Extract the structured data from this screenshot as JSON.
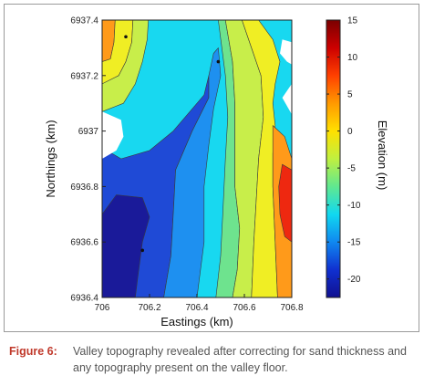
{
  "chart_data": {
    "type": "heatmap",
    "subtype": "filled-contour",
    "title": "",
    "xlabel": "Eastings (km)",
    "ylabel": "Northings (km)",
    "xlim": [
      706.0,
      706.8
    ],
    "ylim": [
      6936.4,
      6937.4
    ],
    "x_ticks": [
      "706",
      "706.2",
      "706.4",
      "706.6",
      "706.8"
    ],
    "y_ticks": [
      "6936.4",
      "6936.6",
      "6936.8",
      "6937",
      "6937.2",
      "6937.4"
    ],
    "colorbar": {
      "label": "Elevation (m)",
      "range": [
        -22.5,
        15
      ],
      "ticks": [
        "15",
        "10",
        "5",
        "0",
        "-5",
        "-10",
        "-15",
        "-20"
      ],
      "levels": [
        {
          "from": -25,
          "to": -20,
          "color": "#1a1a99"
        },
        {
          "from": -20,
          "to": -15,
          "color": "#1f4ad6"
        },
        {
          "from": -15,
          "to": -10,
          "color": "#1e90f0"
        },
        {
          "from": -10,
          "to": -5,
          "color": "#18d8f0"
        },
        {
          "from": -5,
          "to": 0,
          "color": "#6ee38e"
        },
        {
          "from": 0,
          "to": 5,
          "color": "#c8ee4a"
        },
        {
          "from": 5,
          "to": 10,
          "color": "#f0ee24"
        },
        {
          "from": 10,
          "to": 15,
          "color": "#ff9a1a"
        },
        {
          "from": 15,
          "to": 20,
          "color": "#ee2810"
        },
        {
          "from": 20,
          "to": 25,
          "color": "#b80000"
        }
      ],
      "gradient": [
        "#7a0000",
        "#cc0000",
        "#ff4000",
        "#ff9a00",
        "#ffe000",
        "#c0f040",
        "#60e890",
        "#10d8f0",
        "#1088f0",
        "#1030d0",
        "#101090"
      ]
    },
    "contour_regions": [
      {
        "level": "10 to 15",
        "color": "#ff9a1a",
        "points": [
          [
            706.0,
            6937.4
          ],
          [
            706.055,
            6937.4
          ],
          [
            706.05,
            6937.32
          ],
          [
            706.035,
            6937.26
          ],
          [
            706.0,
            6937.25
          ]
        ]
      },
      {
        "level": "5 to 10",
        "color": "#f0ee24",
        "points": [
          [
            706.055,
            6937.4
          ],
          [
            706.13,
            6937.4
          ],
          [
            706.125,
            6937.32
          ],
          [
            706.1,
            6937.25
          ],
          [
            706.07,
            6937.2
          ],
          [
            706.0,
            6937.17
          ],
          [
            706.0,
            6937.25
          ],
          [
            706.035,
            6937.26
          ],
          [
            706.05,
            6937.32
          ]
        ]
      },
      {
        "level": "0 to 5",
        "color": "#c8ee4a",
        "points": [
          [
            706.13,
            6937.4
          ],
          [
            706.195,
            6937.4
          ],
          [
            706.19,
            6937.33
          ],
          [
            706.17,
            6937.25
          ],
          [
            706.14,
            6937.17
          ],
          [
            706.09,
            6937.1
          ],
          [
            706.0,
            6937.07
          ],
          [
            706.0,
            6937.17
          ],
          [
            706.07,
            6937.2
          ],
          [
            706.1,
            6937.25
          ],
          [
            706.125,
            6937.32
          ]
        ]
      },
      {
        "level": "-20 to -15",
        "color": "#1f4ad6",
        "points": [
          [
            706.0,
            6936.94
          ],
          [
            706.08,
            6936.9
          ],
          [
            706.2,
            6936.93
          ],
          [
            706.3,
            6937.0
          ],
          [
            706.37,
            6937.07
          ],
          [
            706.43,
            6937.13
          ],
          [
            706.45,
            6937.2
          ],
          [
            706.45,
            6937.12
          ],
          [
            706.38,
            6937.0
          ],
          [
            706.31,
            6936.86
          ],
          [
            706.3,
            6936.7
          ],
          [
            706.29,
            6936.55
          ],
          [
            706.26,
            6936.4
          ],
          [
            706.0,
            6936.4
          ]
        ]
      },
      {
        "level": "-25 to -20",
        "color": "#1a1a99",
        "points": [
          [
            706.0,
            6936.4
          ],
          [
            706.0,
            6936.7
          ],
          [
            706.06,
            6936.77
          ],
          [
            706.17,
            6936.76
          ],
          [
            706.2,
            6936.69
          ],
          [
            706.17,
            6936.6
          ],
          [
            706.15,
            6936.47
          ],
          [
            706.14,
            6936.4
          ]
        ]
      },
      {
        "level": "-15 to -10",
        "color": "#1e90f0",
        "points": [
          [
            706.45,
            6937.2
          ],
          [
            706.47,
            6937.28
          ],
          [
            706.49,
            6937.3
          ],
          [
            706.5,
            6937.2
          ],
          [
            706.47,
            6937.08
          ],
          [
            706.45,
            6936.95
          ],
          [
            706.43,
            6936.8
          ],
          [
            706.43,
            6936.6
          ],
          [
            706.4,
            6936.4
          ],
          [
            706.26,
            6936.4
          ],
          [
            706.29,
            6936.55
          ],
          [
            706.3,
            6936.7
          ],
          [
            706.31,
            6936.86
          ],
          [
            706.38,
            6937.0
          ],
          [
            706.45,
            6937.12
          ]
        ]
      },
      {
        "level": "-5 to 0",
        "color": "#6ee38e",
        "points": [
          [
            706.52,
            6937.4
          ],
          [
            706.55,
            6937.25
          ],
          [
            706.56,
            6937.1
          ],
          [
            706.56,
            6936.95
          ],
          [
            706.56,
            6936.8
          ],
          [
            706.58,
            6936.65
          ],
          [
            706.57,
            6936.5
          ],
          [
            706.55,
            6936.4
          ],
          [
            706.48,
            6936.4
          ],
          [
            706.5,
            6936.55
          ],
          [
            706.51,
            6936.72
          ],
          [
            706.52,
            6936.9
          ],
          [
            706.53,
            6937.05
          ],
          [
            706.52,
            6937.2
          ],
          [
            706.49,
            6937.4
          ]
        ]
      },
      {
        "level": "0 to 5",
        "color": "#c8ee4a",
        "points": [
          [
            706.59,
            6937.4
          ],
          [
            706.63,
            6937.3
          ],
          [
            706.67,
            6937.2
          ],
          [
            706.68,
            6937.05
          ],
          [
            706.66,
            6936.9
          ],
          [
            706.65,
            6936.75
          ],
          [
            706.64,
            6936.6
          ],
          [
            706.63,
            6936.4
          ],
          [
            706.55,
            6936.4
          ],
          [
            706.57,
            6936.5
          ],
          [
            706.58,
            6936.65
          ],
          [
            706.56,
            6936.8
          ],
          [
            706.56,
            6936.95
          ],
          [
            706.56,
            6937.1
          ],
          [
            706.55,
            6937.25
          ],
          [
            706.52,
            6937.4
          ]
        ]
      },
      {
        "level": "5 to 10",
        "color": "#f0ee24",
        "points": [
          [
            706.66,
            6937.4
          ],
          [
            706.72,
            6937.33
          ],
          [
            706.75,
            6937.25
          ],
          [
            706.73,
            6937.17
          ],
          [
            706.72,
            6937.1
          ],
          [
            706.73,
            6937.02
          ],
          [
            706.72,
            6936.92
          ],
          [
            706.72,
            6936.8
          ],
          [
            706.73,
            6936.6
          ],
          [
            706.74,
            6936.4
          ],
          [
            706.63,
            6936.4
          ],
          [
            706.64,
            6936.6
          ],
          [
            706.65,
            6936.75
          ],
          [
            706.66,
            6936.9
          ],
          [
            706.68,
            6937.05
          ],
          [
            706.67,
            6937.2
          ],
          [
            706.63,
            6937.3
          ],
          [
            706.59,
            6937.4
          ]
        ]
      },
      {
        "level": "10 to 15",
        "color": "#ff9a1a",
        "points": [
          [
            706.72,
            6937.02
          ],
          [
            706.77,
            6936.98
          ],
          [
            706.8,
            6936.9
          ],
          [
            706.8,
            6936.4
          ],
          [
            706.74,
            6936.4
          ],
          [
            706.73,
            6936.6
          ],
          [
            706.72,
            6936.8
          ],
          [
            706.72,
            6936.92
          ]
        ]
      },
      {
        "level": "15 to 20",
        "color": "#ee2810",
        "points": [
          [
            706.76,
            6936.88
          ],
          [
            706.8,
            6936.86
          ],
          [
            706.8,
            6936.6
          ],
          [
            706.77,
            6936.62
          ],
          [
            706.75,
            6936.7
          ],
          [
            706.745,
            6936.8
          ]
        ]
      }
    ],
    "blank_regions": [
      {
        "points": [
          [
            706.0,
            6937.07
          ],
          [
            706.08,
            6937.04
          ],
          [
            706.09,
            6936.98
          ],
          [
            706.06,
            6936.93
          ],
          [
            706.0,
            6936.9
          ]
        ]
      },
      {
        "points": [
          [
            706.8,
            6937.4
          ],
          [
            706.8,
            6937.32
          ],
          [
            706.76,
            6937.33
          ],
          [
            706.75,
            6937.28
          ],
          [
            706.78,
            6937.25
          ],
          [
            706.8,
            6937.24
          ]
        ]
      },
      {
        "points": [
          [
            706.8,
            6937.17
          ],
          [
            706.76,
            6937.12
          ],
          [
            706.8,
            6937.06
          ]
        ]
      }
    ],
    "markers": [
      {
        "x": 706.1,
        "y": 6937.34
      },
      {
        "x": 706.49,
        "y": 6937.25
      },
      {
        "x": 706.17,
        "y": 6936.57
      }
    ],
    "background_level": {
      "level": "-10 to -5",
      "color": "#18d8f0"
    },
    "left_edge_color": {
      "level": "15 to 20",
      "color": "#ee2810"
    }
  },
  "caption": {
    "label": "Figure 6:",
    "text": "Valley topography revealed after correcting for sand thickness and any topography present on the valley floor."
  }
}
